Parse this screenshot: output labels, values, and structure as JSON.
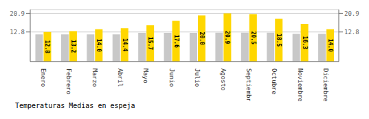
{
  "chart_data": {
    "type": "bar",
    "title": "Temperaturas Medias en espeja",
    "categories": [
      "Enero",
      "Febrero",
      "Marzo",
      "Abril",
      "Mayo",
      "Junio",
      "Julio",
      "Agosto",
      "Septiembre",
      "Octubre",
      "Noviembre",
      "Diciembre"
    ],
    "series": [
      {
        "color": "#C8C8C8",
        "values": [
          11.8,
          11.8,
          11.8,
          11.8,
          12.4,
          12.4,
          12.4,
          12.5,
          12.5,
          12.5,
          12.0,
          12.0
        ]
      },
      {
        "color": "#FFD700",
        "values": [
          12.8,
          13.2,
          14.0,
          14.4,
          15.7,
          17.6,
          20.0,
          20.9,
          20.5,
          18.5,
          16.3,
          14.0
        ],
        "data_labels": true,
        "value_labels": [
          "12.8",
          "13.2",
          "14.0",
          "14.4",
          "15.7",
          "17.6",
          "20.0",
          "20.9",
          "20.5",
          "18.5",
          "16.3",
          "14.0"
        ]
      }
    ],
    "ylim": [
      0,
      22.5
    ],
    "yticks": [
      12.8,
      20.9
    ],
    "y2lim": [
      0,
      22.5
    ],
    "y2ticks": [
      12.8,
      20.9
    ],
    "grid": true
  }
}
